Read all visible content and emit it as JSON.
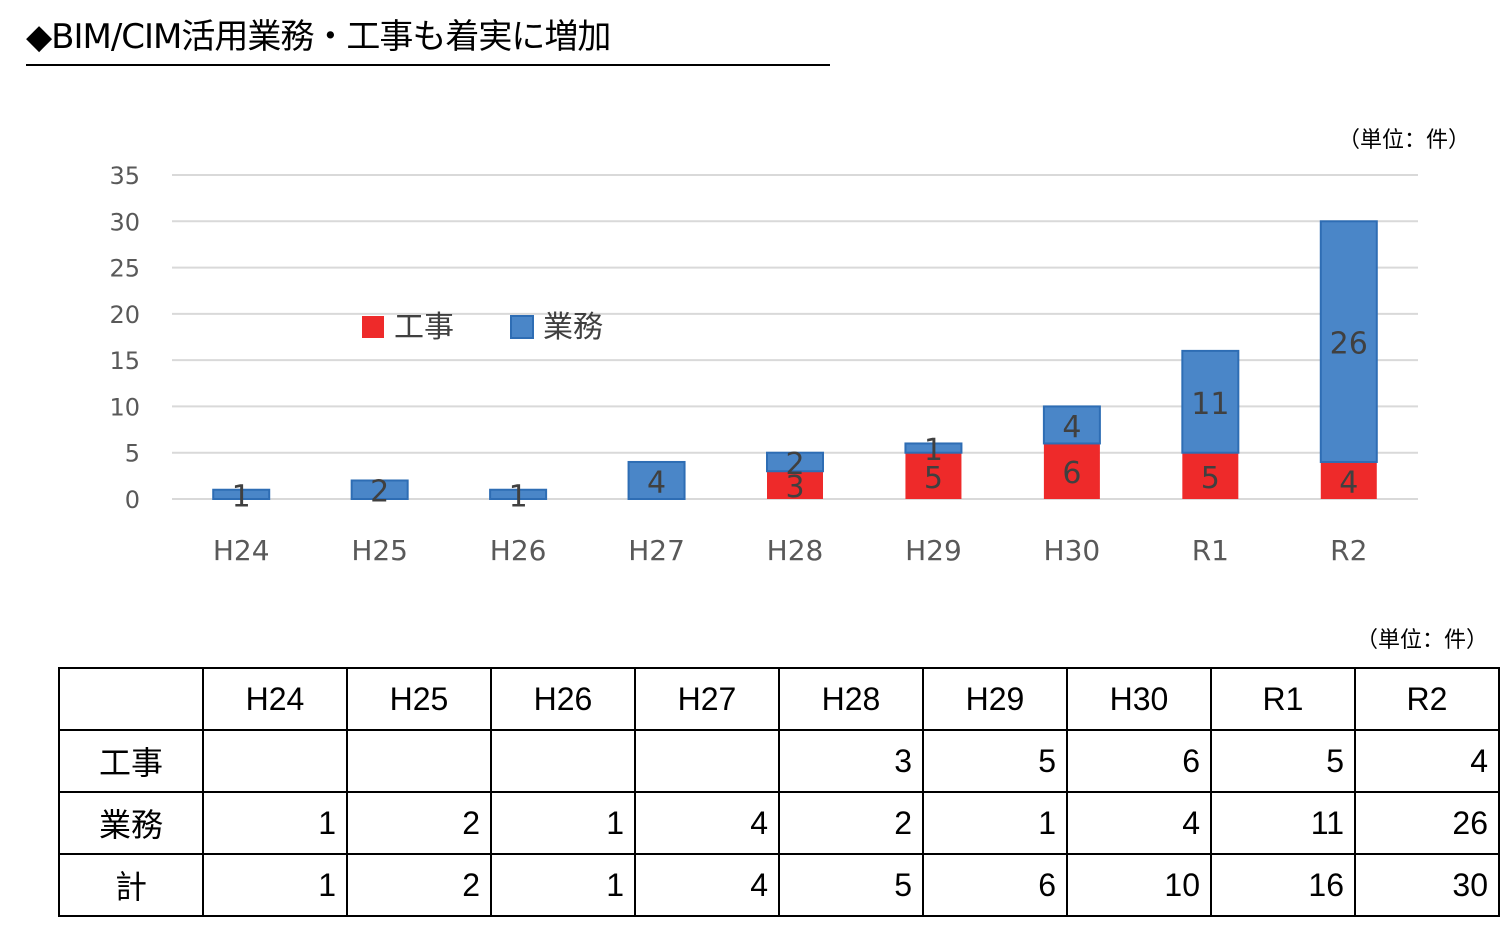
{
  "title": "◆BIM/CIM活用業務・工事も着実に増加",
  "unit_label": "（単位：件）",
  "colors": {
    "construction": "#ee2a2a",
    "design": "#4a86c8",
    "design_border": "#2e6db4",
    "grid": "#d9d9d9",
    "axis_text": "#595959"
  },
  "chart_data": {
    "type": "bar",
    "stacked": true,
    "categories": [
      "H24",
      "H25",
      "H26",
      "H27",
      "H28",
      "H29",
      "H30",
      "R1",
      "R2"
    ],
    "series": [
      {
        "name": "工事",
        "values": [
          0,
          0,
          0,
          0,
          3,
          5,
          6,
          5,
          4
        ]
      },
      {
        "name": "業務",
        "values": [
          1,
          2,
          1,
          4,
          2,
          1,
          4,
          11,
          26
        ]
      }
    ],
    "data_labels": {
      "工事": [
        "",
        "",
        "",
        "",
        "3",
        "5",
        "6",
        "5",
        "4"
      ],
      "業務": [
        "1",
        "2",
        "1",
        "4",
        "2",
        "1",
        "4",
        "11",
        "26"
      ]
    },
    "yticks": [
      "0",
      "5",
      "10",
      "15",
      "20",
      "25",
      "30",
      "35"
    ],
    "ylim": [
      0,
      35
    ],
    "grid": true,
    "legend": "top-left",
    "legend_labels": [
      "工事",
      "業務"
    ]
  },
  "table": {
    "headers": [
      "",
      "H24",
      "H25",
      "H26",
      "H27",
      "H28",
      "H29",
      "H30",
      "R1",
      "R2"
    ],
    "rows": [
      {
        "label": "工事",
        "cells": [
          "",
          "",
          "",
          "",
          "3",
          "5",
          "6",
          "5",
          "4"
        ]
      },
      {
        "label": "業務",
        "cells": [
          "1",
          "2",
          "1",
          "4",
          "2",
          "1",
          "4",
          "11",
          "26"
        ]
      },
      {
        "label": "計",
        "cells": [
          "1",
          "2",
          "1",
          "4",
          "5",
          "6",
          "10",
          "16",
          "30"
        ]
      }
    ]
  }
}
